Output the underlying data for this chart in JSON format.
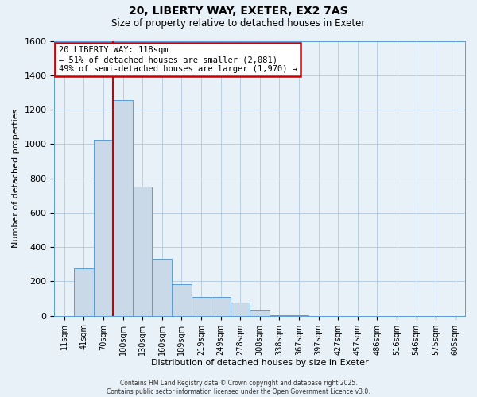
{
  "title_line1": "20, LIBERTY WAY, EXETER, EX2 7AS",
  "title_line2": "Size of property relative to detached houses in Exeter",
  "xlabel": "Distribution of detached houses by size in Exeter",
  "ylabel": "Number of detached properties",
  "bar_labels": [
    "11sqm",
    "41sqm",
    "70sqm",
    "100sqm",
    "130sqm",
    "160sqm",
    "189sqm",
    "219sqm",
    "249sqm",
    "278sqm",
    "308sqm",
    "338sqm",
    "367sqm",
    "397sqm",
    "427sqm",
    "457sqm",
    "486sqm",
    "516sqm",
    "546sqm",
    "575sqm",
    "605sqm"
  ],
  "bar_values": [
    0,
    275,
    1025,
    1255,
    750,
    330,
    185,
    110,
    110,
    75,
    30,
    5,
    2,
    1,
    0,
    0,
    0,
    0,
    0,
    0,
    0
  ],
  "bar_color": "#c9d9e8",
  "bar_edge_color": "#5b9bd5",
  "vline_x": 2.5,
  "vline_color": "#cc0000",
  "annotation_text": "20 LIBERTY WAY: 118sqm\n← 51% of detached houses are smaller (2,081)\n49% of semi-detached houses are larger (1,970) →",
  "annotation_box_color": "white",
  "annotation_box_edge_color": "#cc0000",
  "ylim": [
    0,
    1600
  ],
  "yticks": [
    0,
    200,
    400,
    600,
    800,
    1000,
    1200,
    1400,
    1600
  ],
  "grid_color": "#b0c8e0",
  "bg_color": "#e8f0f8",
  "footer_line1": "Contains HM Land Registry data © Crown copyright and database right 2025.",
  "footer_line2": "Contains public sector information licensed under the Open Government Licence v3.0."
}
